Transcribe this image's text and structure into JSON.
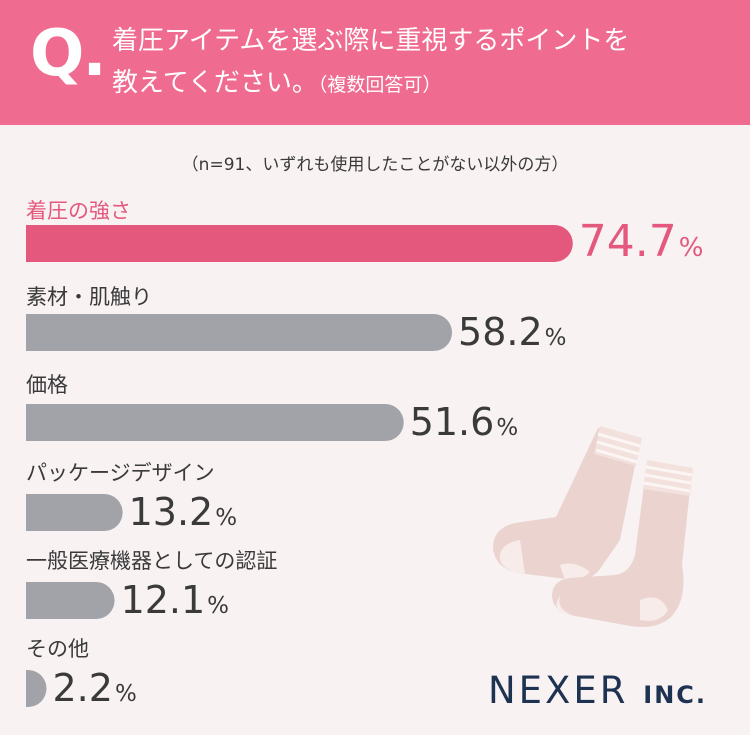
{
  "header": {
    "q_mark": "Q.",
    "line1": "着圧アイテムを選ぶ際に重視するポイントを",
    "line2_main": "教えてください。",
    "line2_sub": "（複数回答可）"
  },
  "note": "（n=91、いずれも使用したことがない以外の方）",
  "chart_data": {
    "type": "bar",
    "orientation": "horizontal",
    "categories": [
      "着圧の強さ",
      "素材・肌触り",
      "価格",
      "パッケージデザイン",
      "一般医療機器としての認証",
      "その他"
    ],
    "values": [
      74.7,
      58.2,
      51.6,
      13.2,
      12.1,
      2.2
    ],
    "unit": "%",
    "highlight_index": 0,
    "colors": {
      "highlight": "#e4587d",
      "default": "#a2a3a8",
      "highlight_text": "#e4587d",
      "default_text": "#3a3a3a"
    }
  },
  "logo": {
    "main": "NEXER",
    "sub": "INC."
  },
  "colors": {
    "header_bg": "#ef6b8f",
    "page_bg": "#f8f2f3",
    "logo": "#1e3352",
    "sock": "#ebd4cf",
    "sock_stripe": "#f7ece9"
  }
}
